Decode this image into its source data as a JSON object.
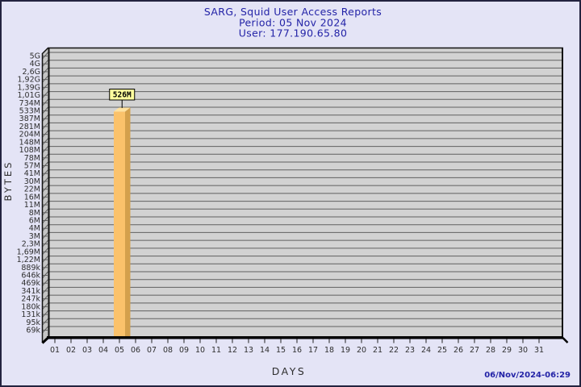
{
  "chart_data": {
    "type": "bar",
    "title": "SARG, Squid User Access Reports",
    "period": "Period: 05 Nov 2024",
    "user": "User: 177.190.65.80",
    "xlabel": "DAYS",
    "ylabel": "BYTES",
    "y_scale": "log",
    "y_log_scale": {
      "top_tick_bytes": 5000000000,
      "bottom_tick_bytes": 69000
    },
    "y_tick_labels": [
      "5G",
      "4G",
      "2,6G",
      "1,92G",
      "1,39G",
      "1,01G",
      "734M",
      "533M",
      "387M",
      "281M",
      "204M",
      "148M",
      "108M",
      "78M",
      "57M",
      "41M",
      "30M",
      "22M",
      "16M",
      "11M",
      "8M",
      "6M",
      "4M",
      "3M",
      "2,3M",
      "1,69M",
      "1,22M",
      "889k",
      "646k",
      "469k",
      "341k",
      "247k",
      "180k",
      "131k",
      "95k",
      "69k"
    ],
    "categories": [
      "01",
      "02",
      "03",
      "04",
      "05",
      "06",
      "07",
      "08",
      "09",
      "10",
      "11",
      "12",
      "13",
      "14",
      "15",
      "16",
      "17",
      "18",
      "19",
      "20",
      "21",
      "22",
      "23",
      "24",
      "25",
      "26",
      "27",
      "28",
      "29",
      "30",
      "31"
    ],
    "values_bytes": [
      null,
      null,
      null,
      null,
      526000000,
      null,
      null,
      null,
      null,
      null,
      null,
      null,
      null,
      null,
      null,
      null,
      null,
      null,
      null,
      null,
      null,
      null,
      null,
      null,
      null,
      null,
      null,
      null,
      null,
      null,
      null
    ],
    "point_labels": [
      null,
      null,
      null,
      null,
      "526M",
      null,
      null,
      null,
      null,
      null,
      null,
      null,
      null,
      null,
      null,
      null,
      null,
      null,
      null,
      null,
      null,
      null,
      null,
      null,
      null,
      null,
      null,
      null,
      null,
      null,
      null
    ],
    "grid": "horizontal",
    "legend": "none"
  },
  "footer": {
    "timestamp": "06/Nov/2024-06:29"
  },
  "colors": {
    "background": "#E4E4F6",
    "frame_border": "#23233F",
    "title_text": "#2323A7",
    "plot_fill": "#D2D2D2",
    "wall_fill": "#C4C4C4",
    "grid_line": "#606060",
    "plot_border": "#111111",
    "axis_text": "#2E2E2E",
    "bar_front": "#FBC26B",
    "bar_side": "#D4A04C",
    "bar_top": "#FFE2A0",
    "value_label_bg": "#FFFF9E",
    "value_label_border": "#000000",
    "timestamp_text": "#2323A7"
  }
}
